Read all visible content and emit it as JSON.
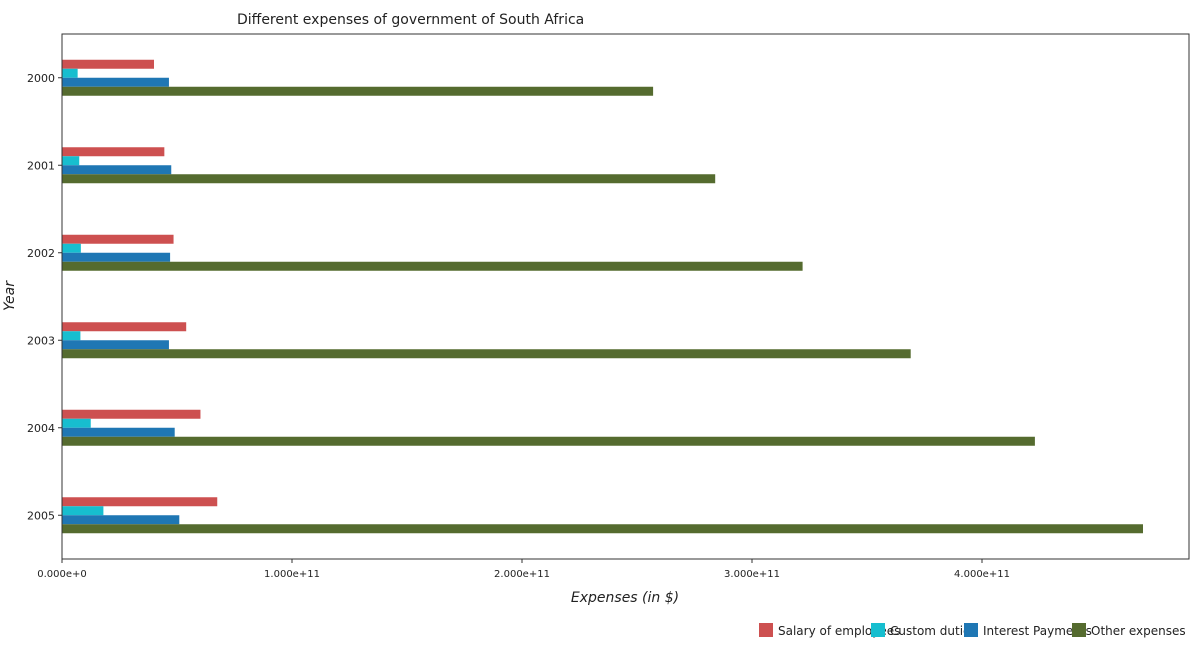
{
  "chart_data": {
    "type": "bar",
    "orientation": "horizontal",
    "title": "Different expenses of government of South Africa",
    "xlabel": "Expenses (in $)",
    "ylabel": "Year",
    "categories": [
      "2000",
      "2001",
      "2002",
      "2003",
      "2004",
      "2005"
    ],
    "xlim": [
      0,
      490000000000
    ],
    "xticks": [
      0,
      100000000000,
      200000000000,
      300000000000,
      400000000000
    ],
    "xtick_labels": [
      "0.000e+0",
      "1.000e+11",
      "2.000e+11",
      "3.000e+11",
      "4.000e+11"
    ],
    "grid": false,
    "legend_position": "bottom-right",
    "series": [
      {
        "name": "Salary of employees",
        "color": "#cd5050",
        "values": [
          40000000000,
          44500000000,
          48500000000,
          54000000000,
          60200000000,
          67500000000
        ]
      },
      {
        "name": "Custom duties",
        "color": "#17becf",
        "values": [
          6800000000,
          7500000000,
          8200000000,
          8000000000,
          12500000000,
          18000000000
        ]
      },
      {
        "name": "Interest Payments",
        "color": "#1f77b4",
        "values": [
          46500000000,
          47500000000,
          47000000000,
          46500000000,
          49000000000,
          51000000000
        ]
      },
      {
        "name": "Other expenses",
        "color": "#556b2f",
        "values": [
          257000000000,
          284000000000,
          322000000000,
          369000000000,
          423000000000,
          470000000000
        ]
      }
    ]
  }
}
